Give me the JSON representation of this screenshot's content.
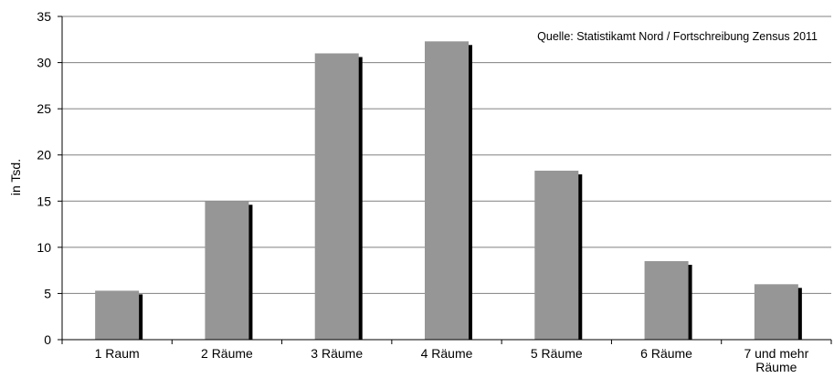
{
  "chart_data": {
    "type": "bar",
    "categories": [
      "1 Raum",
      "2 Räume",
      "3 Räume",
      "4 Räume",
      "5 Räume",
      "6 Räume",
      "7 und mehr Räume"
    ],
    "category_lines": [
      [
        "1 Raum"
      ],
      [
        "2 Räume"
      ],
      [
        "3 Räume"
      ],
      [
        "4 Räume"
      ],
      [
        "5 Räume"
      ],
      [
        "6 Räume"
      ],
      [
        "7 und mehr",
        "Räume"
      ]
    ],
    "values": [
      5.3,
      15.0,
      31.0,
      32.3,
      18.3,
      8.5,
      6.0
    ],
    "ylabel": "in Tsd.",
    "xlabel": "",
    "ylim": [
      0,
      35
    ],
    "yticks": [
      0,
      5,
      10,
      15,
      20,
      25,
      30,
      35
    ],
    "grid": true,
    "source_note": "Quelle: Statistikamt Nord / Fortschreibung Zensus 2011",
    "colors": {
      "bar": "#969696",
      "shadow": "#000000",
      "grid": "#808080",
      "axis": "#000000"
    }
  }
}
